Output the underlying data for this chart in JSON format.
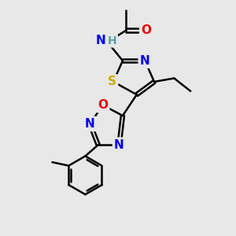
{
  "background_color": "#e8e8e8",
  "bond_color": "#000000",
  "bond_width": 1.8,
  "atom_colors": {
    "C": "#000000",
    "H": "#5f9ea0",
    "N": "#0000ee",
    "O": "#ee0000",
    "S": "#ccaa00"
  },
  "font_size": 11,
  "fig_size": [
    3.0,
    3.0
  ],
  "dpi": 100
}
